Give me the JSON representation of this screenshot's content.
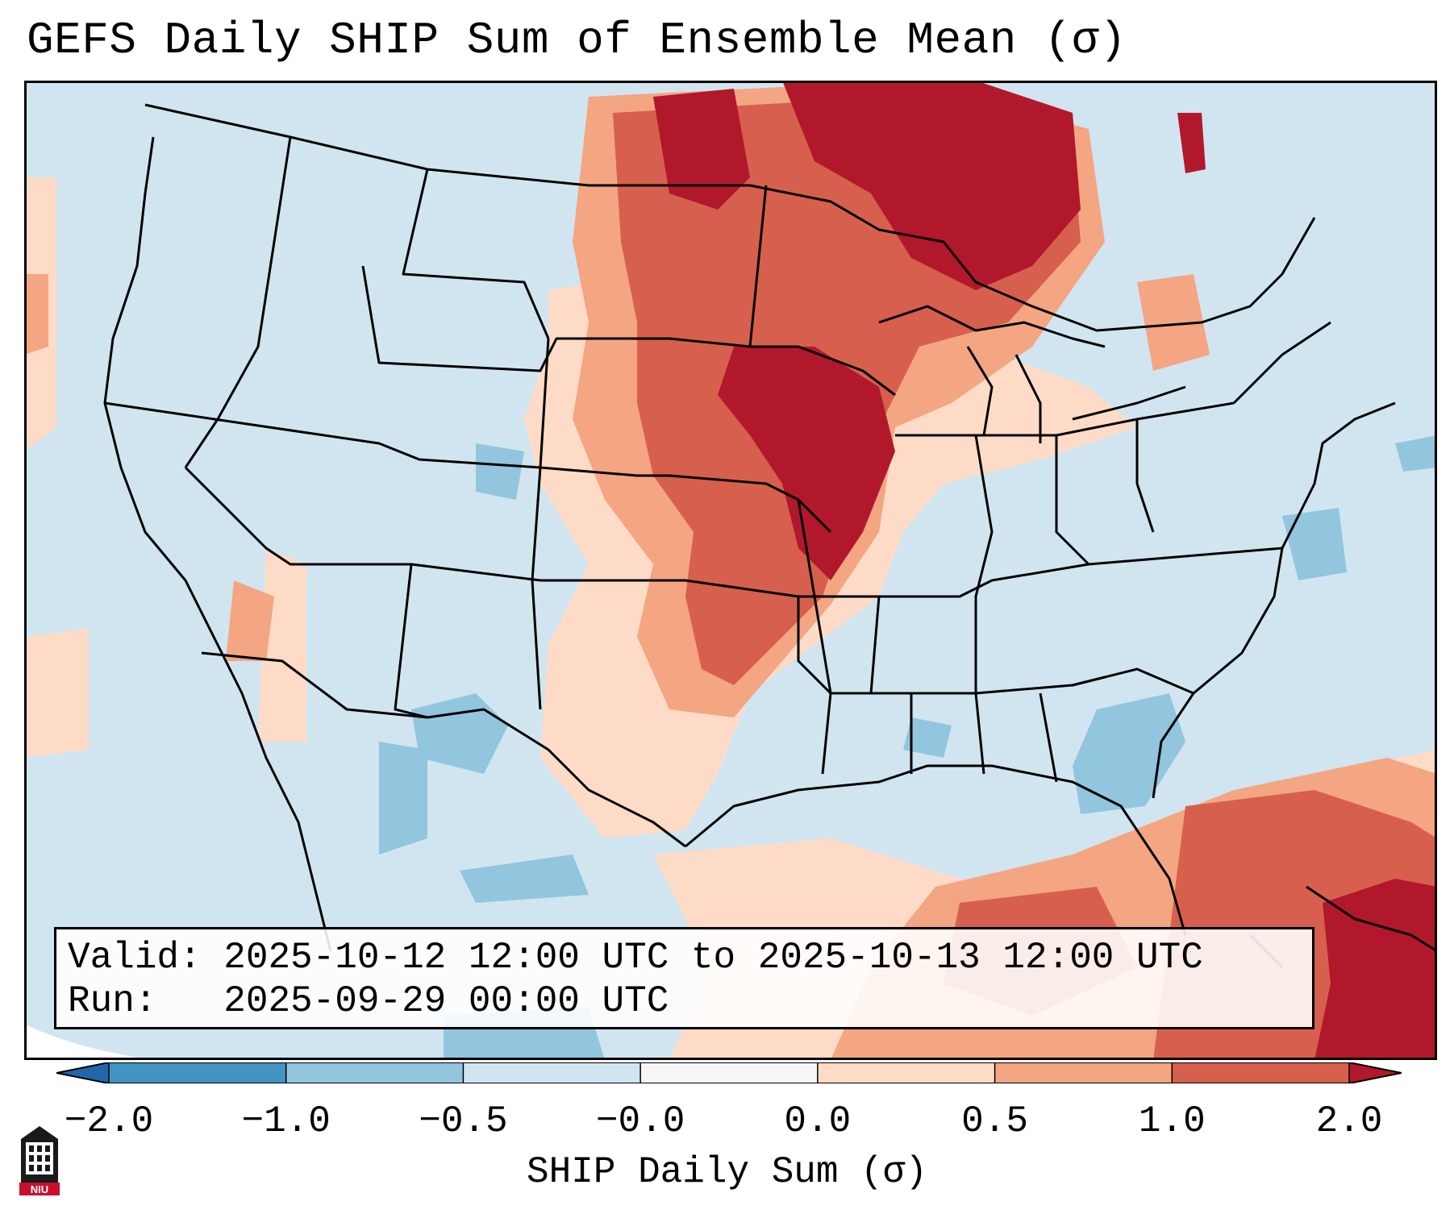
{
  "title": "GEFS Daily SHIP Sum of Ensemble Mean (σ)",
  "info": {
    "valid_line": "Valid: 2025-10-12 12:00 UTC to 2025-10-13 12:00 UTC",
    "run_line": "Run:   2025-09-29 00:00 UTC"
  },
  "colorbar": {
    "label": "SHIP Daily Sum (σ)",
    "ticks": [
      "−2.0",
      "−1.0",
      "−0.5",
      "−0.0",
      "0.0",
      "0.5",
      "1.0",
      "2.0"
    ],
    "bins": [
      {
        "range": "<-2.0",
        "color": "#2166ac"
      },
      {
        "range": "-2.0 to -1.0",
        "color": "#4393c3"
      },
      {
        "range": "-1.0 to -0.5",
        "color": "#92c5de"
      },
      {
        "range": "-0.5 to -0.0",
        "color": "#d1e5f0"
      },
      {
        "range": "-0.0 to 0.0",
        "color": "#f7f7f7"
      },
      {
        "range": "0.0 to 0.5",
        "color": "#fddbc7"
      },
      {
        "range": "0.5 to 1.0",
        "color": "#f4a582"
      },
      {
        "range": "1.0 to 2.0",
        "color": "#d6604d"
      },
      {
        "range": ">2.0",
        "color": "#b2182b"
      }
    ]
  },
  "map": {
    "projection": "Lambert conformal, CONUS",
    "background_color": "#d1e5f0",
    "features": [
      "state borders",
      "coastlines",
      "national borders"
    ],
    "highlights": [
      "Strongest positive anomalies (>2.0) over Nebraska, Iowa, Minnesota, Upper Great Lakes, Ontario",
      "Positive anomalies over Gulf of Mexico, Caribbean and western Atlantic",
      "Weak negative anomalies over Georgia/South Carolina, Colorado/New Mexico, northern Mexico"
    ]
  },
  "logo": {
    "text": "NIU",
    "name": "Northern Illinois University"
  }
}
